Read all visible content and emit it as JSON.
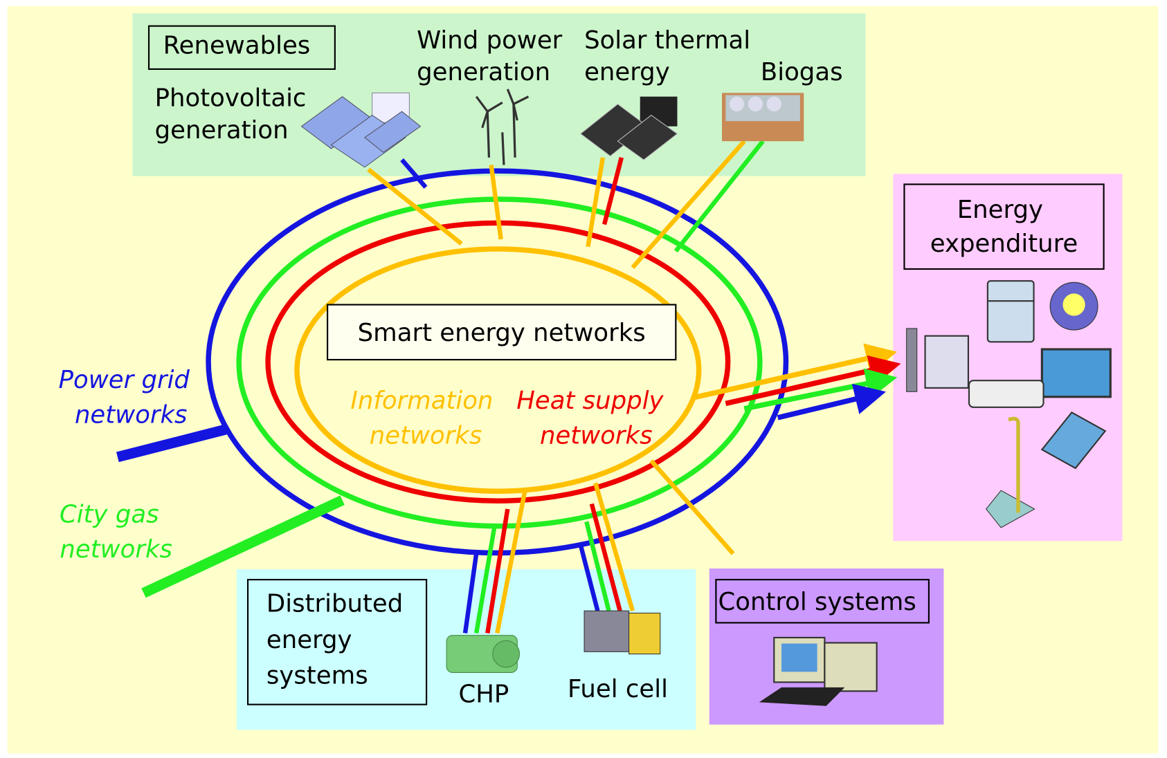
{
  "renewables": {
    "title": "Renewables",
    "photovoltaic": [
      "Photovoltaic",
      "generation"
    ],
    "wind": [
      "Wind power",
      "generation"
    ],
    "solar": [
      "Solar thermal",
      "energy"
    ],
    "biogas": "Biogas"
  },
  "center": {
    "title": "Smart energy networks",
    "information": [
      "Information",
      "networks"
    ],
    "heat": [
      "Heat supply",
      "networks"
    ],
    "power_grid": [
      "Power grid",
      "networks"
    ],
    "city_gas": [
      "City gas",
      "networks"
    ]
  },
  "expenditure": {
    "title": [
      "Energy",
      "expenditure"
    ]
  },
  "distributed": {
    "title": [
      "Distributed",
      "energy",
      "systems"
    ],
    "chp": "CHP",
    "fuel_cell": "Fuel cell"
  },
  "control": {
    "title": "Control systems"
  }
}
